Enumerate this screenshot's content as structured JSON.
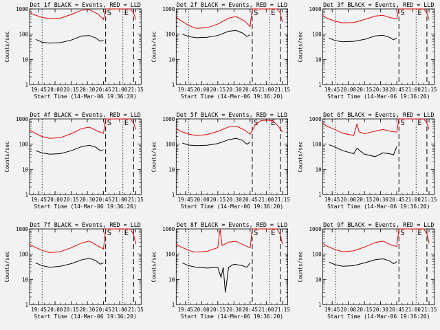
{
  "figure": {
    "background": "#f2f2f2",
    "events_color": "#000000",
    "lld_color": "#e00000"
  },
  "chart_data": [
    {
      "type": "line",
      "title": "Det 1f BLACK = Events, RED = LLD",
      "xlabel": "Start Time (14-Mar-06 19:36:20)",
      "ylabel": "Counts/sec",
      "y_scale": "log",
      "ylim": [
        1,
        1000
      ],
      "x_ticks": [
        "19:45",
        "20:00",
        "20:15",
        "20:30",
        "20:45",
        "21:00",
        "21:15"
      ],
      "y_ticks": [
        "1",
        "10",
        "100",
        "1000"
      ],
      "flags": [
        "S",
        "E"
      ],
      "series": [
        {
          "name": "Events",
          "x": [
            "19:42",
            "19:48",
            "19:55",
            "20:05",
            "20:15",
            "20:25",
            "20:32",
            "20:38",
            "20:42",
            "20:45"
          ],
          "values": [
            62,
            48,
            44,
            46,
            58,
            85,
            88,
            70,
            52,
            58
          ]
        },
        {
          "name": "LLD",
          "x": [
            "19:36",
            "19:40",
            "19:48",
            "19:55",
            "20:05",
            "20:15",
            "20:25",
            "20:32",
            "20:40",
            "20:45",
            "20:47",
            "21:10",
            "21:13",
            "21:15"
          ],
          "values": [
            740,
            600,
            460,
            410,
            430,
            600,
            900,
            940,
            620,
            380,
            1000,
            1000,
            700,
            380
          ]
        }
      ]
    },
    {
      "type": "line",
      "title": "Det 2f BLACK = Events, RED = LLD",
      "xlabel": "Start Time (14-Mar-06 19:36:20)",
      "ylabel": "Counts/sec",
      "y_scale": "log",
      "ylim": [
        1,
        1000
      ],
      "x_ticks": [
        "19:45",
        "20:00",
        "20:15",
        "20:30",
        "20:45",
        "21:00",
        "21:15"
      ],
      "y_ticks": [
        "1",
        "10",
        "100",
        "1000"
      ],
      "flags": [
        "S",
        "E"
      ],
      "series": [
        {
          "name": "Events",
          "x": [
            "19:42",
            "19:48",
            "19:55",
            "20:05",
            "20:15",
            "20:25",
            "20:32",
            "20:38",
            "20:42",
            "20:45"
          ],
          "values": [
            100,
            80,
            72,
            75,
            88,
            130,
            140,
            110,
            80,
            95
          ]
        },
        {
          "name": "LLD",
          "x": [
            "19:36",
            "19:40",
            "19:48",
            "19:55",
            "20:05",
            "20:15",
            "20:25",
            "20:32",
            "20:40",
            "20:45",
            "20:47",
            "21:10",
            "21:13",
            "21:15"
          ],
          "values": [
            480,
            360,
            220,
            170,
            180,
            250,
            430,
            500,
            330,
            200,
            1000,
            1000,
            700,
            300
          ]
        }
      ]
    },
    {
      "type": "line",
      "title": "Det 3f BLACK = Events, RED = LLD",
      "xlabel": "Start Time (14-Mar-06 19:36:20)",
      "ylabel": "Counts/sec",
      "y_scale": "log",
      "ylim": [
        1,
        1000
      ],
      "x_ticks": [
        "19:45",
        "20:00",
        "20:15",
        "20:30",
        "20:45",
        "21:00",
        "21:15"
      ],
      "y_ticks": [
        "1",
        "10",
        "100",
        "1000"
      ],
      "flags": [
        "S",
        "E"
      ],
      "series": [
        {
          "name": "Events",
          "x": [
            "19:42",
            "19:48",
            "19:55",
            "20:05",
            "20:15",
            "20:25",
            "20:32",
            "20:38",
            "20:42",
            "20:45"
          ],
          "values": [
            70,
            55,
            50,
            52,
            62,
            85,
            90,
            75,
            60,
            70
          ]
        },
        {
          "name": "LLD",
          "x": [
            "19:36",
            "19:40",
            "19:48",
            "19:55",
            "20:05",
            "20:15",
            "20:25",
            "20:32",
            "20:40",
            "20:45",
            "20:47",
            "21:10",
            "21:13",
            "21:15"
          ],
          "values": [
            560,
            430,
            320,
            280,
            290,
            380,
            520,
            560,
            440,
            420,
            1000,
            1000,
            700,
            380
          ]
        }
      ]
    },
    {
      "type": "line",
      "title": "Det 4f BLACK = Events, RED = LLD",
      "xlabel": "Start Time (14-Mar-06 19:36:20)",
      "ylabel": "Counts/sec",
      "y_scale": "log",
      "ylim": [
        1,
        1000
      ],
      "x_ticks": [
        "19:45",
        "20:00",
        "20:15",
        "20:30",
        "20:45",
        "21:00",
        "21:15"
      ],
      "y_ticks": [
        "1",
        "10",
        "100",
        "1000"
      ],
      "flags": [
        "S",
        "E"
      ],
      "series": [
        {
          "name": "Events",
          "x": [
            "19:42",
            "19:48",
            "19:55",
            "20:05",
            "20:15",
            "20:25",
            "20:32",
            "20:38",
            "20:42",
            "20:45"
          ],
          "values": [
            55,
            45,
            40,
            42,
            55,
            80,
            90,
            75,
            55,
            60
          ]
        },
        {
          "name": "LLD",
          "x": [
            "19:36",
            "19:40",
            "19:48",
            "19:55",
            "20:05",
            "20:15",
            "20:25",
            "20:32",
            "20:40",
            "20:45",
            "20:47",
            "21:10",
            "21:13",
            "21:15"
          ],
          "values": [
            380,
            290,
            200,
            170,
            180,
            260,
            420,
            470,
            320,
            270,
            1000,
            1000,
            700,
            380
          ]
        }
      ]
    },
    {
      "type": "line",
      "title": "Det 5f BLACK = Events, RED = LLD",
      "xlabel": "Start Time (14-Mar-06 19:36:20)",
      "ylabel": "Counts/sec",
      "y_scale": "log",
      "ylim": [
        1,
        1000
      ],
      "x_ticks": [
        "19:45",
        "20:00",
        "20:15",
        "20:30",
        "20:45",
        "21:00",
        "21:15"
      ],
      "y_ticks": [
        "1",
        "10",
        "100",
        "1000"
      ],
      "flags": [
        "S",
        "E"
      ],
      "series": [
        {
          "name": "Events",
          "x": [
            "19:42",
            "19:48",
            "19:55",
            "20:05",
            "20:15",
            "20:25",
            "20:32",
            "20:38",
            "20:42",
            "20:45"
          ],
          "values": [
            110,
            92,
            88,
            90,
            105,
            150,
            170,
            140,
            100,
            120
          ]
        },
        {
          "name": "LLD",
          "x": [
            "19:36",
            "19:40",
            "19:48",
            "19:55",
            "20:05",
            "20:15",
            "20:25",
            "20:32",
            "20:40",
            "20:45",
            "20:50",
            "20:55",
            "21:00",
            "21:06",
            "21:10",
            "21:15"
          ],
          "values": [
            420,
            330,
            250,
            220,
            240,
            320,
            480,
            520,
            360,
            250,
            600,
            850,
            900,
            850,
            600,
            300
          ]
        }
      ]
    },
    {
      "type": "line",
      "title": "Det 6f BLACK = Events, RED = LLD",
      "xlabel": "Start Time (14-Mar-06 19:36:20)",
      "ylabel": "Counts/sec",
      "y_scale": "log",
      "ylim": [
        1,
        1000
      ],
      "x_ticks": [
        "19:45",
        "20:00",
        "20:15",
        "20:30",
        "20:45",
        "21:00",
        "21:15"
      ],
      "y_ticks": [
        "1",
        "10",
        "100",
        "1000"
      ],
      "flags": [
        "S",
        "E"
      ],
      "series": [
        {
          "name": "Events",
          "x": [
            "19:42",
            "19:48",
            "19:55",
            "20:05",
            "20:08",
            "20:15",
            "20:25",
            "20:32",
            "20:38",
            "20:42",
            "20:45"
          ],
          "values": [
            95,
            75,
            55,
            42,
            68,
            40,
            32,
            45,
            42,
            38,
            80
          ]
        },
        {
          "name": "LLD",
          "x": [
            "19:36",
            "19:40",
            "19:48",
            "19:55",
            "20:05",
            "20:08",
            "20:10",
            "20:15",
            "20:25",
            "20:32",
            "20:40",
            "20:45",
            "20:47",
            "21:10",
            "21:13",
            "21:15"
          ],
          "values": [
            700,
            520,
            370,
            270,
            220,
            620,
            310,
            260,
            330,
            380,
            320,
            300,
            1000,
            1000,
            700,
            380
          ]
        }
      ]
    },
    {
      "type": "line",
      "title": "Det 7f BLACK = Events, RED = LLD",
      "xlabel": "Start Time (14-Mar-06 19:36:20)",
      "ylabel": "Counts/sec",
      "y_scale": "log",
      "ylim": [
        1,
        1000
      ],
      "x_ticks": [
        "19:45",
        "20:00",
        "20:15",
        "20:30",
        "20:45",
        "21:00",
        "21:15"
      ],
      "y_ticks": [
        "1",
        "10",
        "100",
        "1000"
      ],
      "flags": [
        "S",
        "E"
      ],
      "series": [
        {
          "name": "Events",
          "x": [
            "19:42",
            "19:48",
            "19:55",
            "20:05",
            "20:15",
            "20:25",
            "20:32",
            "20:38",
            "20:42",
            "20:45"
          ],
          "values": [
            45,
            35,
            30,
            33,
            42,
            60,
            68,
            55,
            40,
            45
          ]
        },
        {
          "name": "LLD",
          "x": [
            "19:36",
            "19:40",
            "19:48",
            "19:55",
            "20:05",
            "20:15",
            "20:25",
            "20:32",
            "20:40",
            "20:45",
            "20:47",
            "21:10",
            "21:13",
            "21:15"
          ],
          "values": [
            260,
            200,
            140,
            115,
            125,
            180,
            280,
            330,
            210,
            160,
            1000,
            1000,
            600,
            250
          ]
        }
      ]
    },
    {
      "type": "line",
      "title": "Det 8f BLACK = Events, RED = LLD",
      "xlabel": "Start Time (14-Mar-06 19:36:20)",
      "ylabel": "Counts/sec",
      "y_scale": "log",
      "ylim": [
        1,
        1000
      ],
      "x_ticks": [
        "19:45",
        "20:00",
        "20:15",
        "20:30",
        "20:45",
        "21:00",
        "21:15"
      ],
      "y_ticks": [
        "1",
        "10",
        "100",
        "1000"
      ],
      "flags": [
        "S",
        "E"
      ],
      "series": [
        {
          "name": "Events",
          "x": [
            "19:42",
            "19:48",
            "19:55",
            "20:05",
            "20:15",
            "20:18",
            "20:20",
            "20:22",
            "20:25",
            "20:30",
            "20:38",
            "20:42",
            "20:45"
          ],
          "values": [
            45,
            35,
            30,
            28,
            30,
            12,
            30,
            3,
            30,
            40,
            35,
            30,
            45
          ]
        },
        {
          "name": "LLD",
          "x": [
            "19:36",
            "19:40",
            "19:48",
            "19:55",
            "20:05",
            "20:15",
            "20:17",
            "20:19",
            "20:25",
            "20:32",
            "20:40",
            "20:45",
            "20:47",
            "21:10",
            "21:13",
            "21:15"
          ],
          "values": [
            260,
            200,
            140,
            120,
            130,
            180,
            1000,
            220,
            300,
            320,
            220,
            180,
            1000,
            1000,
            600,
            250
          ]
        }
      ]
    },
    {
      "type": "line",
      "title": "Det 9f BLACK = Events, RED = LLD",
      "xlabel": "Start Time (14-Mar-06 19:36:20)",
      "ylabel": "Counts/sec",
      "y_scale": "log",
      "ylim": [
        1,
        1000
      ],
      "x_ticks": [
        "19:45",
        "20:00",
        "20:15",
        "20:30",
        "20:45",
        "21:00",
        "21:15"
      ],
      "y_ticks": [
        "1",
        "10",
        "100",
        "1000"
      ],
      "flags": [
        "S",
        "E"
      ],
      "series": [
        {
          "name": "Events",
          "x": [
            "19:42",
            "19:48",
            "19:55",
            "20:05",
            "20:15",
            "20:25",
            "20:32",
            "20:38",
            "20:42",
            "20:45"
          ],
          "values": [
            48,
            38,
            33,
            35,
            45,
            60,
            65,
            55,
            42,
            50
          ]
        },
        {
          "name": "LLD",
          "x": [
            "19:36",
            "19:40",
            "19:48",
            "19:55",
            "20:05",
            "20:15",
            "20:25",
            "20:32",
            "20:40",
            "20:45",
            "20:47",
            "21:10",
            "21:13",
            "21:15"
          ],
          "values": [
            270,
            210,
            150,
            125,
            135,
            190,
            290,
            330,
            230,
            200,
            1000,
            1000,
            650,
            270
          ]
        }
      ]
    }
  ]
}
